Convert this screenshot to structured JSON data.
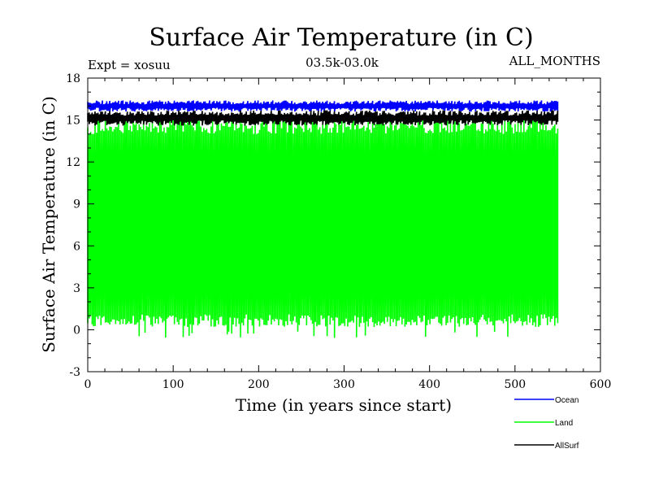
{
  "chart_data": {
    "type": "line",
    "title": "Surface Air Temperature (in C)",
    "subtitle_left": "Expt = xosuu",
    "subtitle_center": "03.5k-03.0k",
    "subtitle_right": "ALL_MONTHS",
    "xlabel": "Time (in years since start)",
    "ylabel": "Surface Air Temperature (in C)",
    "xlim": [
      0,
      600
    ],
    "ylim": [
      -3,
      18
    ],
    "xticks": [
      0,
      100,
      200,
      300,
      400,
      500,
      600
    ],
    "yticks": [
      -3,
      0,
      3,
      6,
      9,
      12,
      15,
      18
    ],
    "x_range_data": [
      0,
      550
    ],
    "series": [
      {
        "name": "Ocean",
        "color": "#0000ff",
        "band_min": 15.6,
        "band_max": 16.4,
        "mean": 16.0
      },
      {
        "name": "Land",
        "color": "#00ff00",
        "band_min": 0.2,
        "band_max": 15.2,
        "mean": 7.5,
        "extreme_min": -0.6
      },
      {
        "name": "AllSurf",
        "color": "#000000",
        "band_min": 14.6,
        "band_max": 15.7,
        "mean": 15.1
      }
    ],
    "legend_position": "bottom-right"
  }
}
